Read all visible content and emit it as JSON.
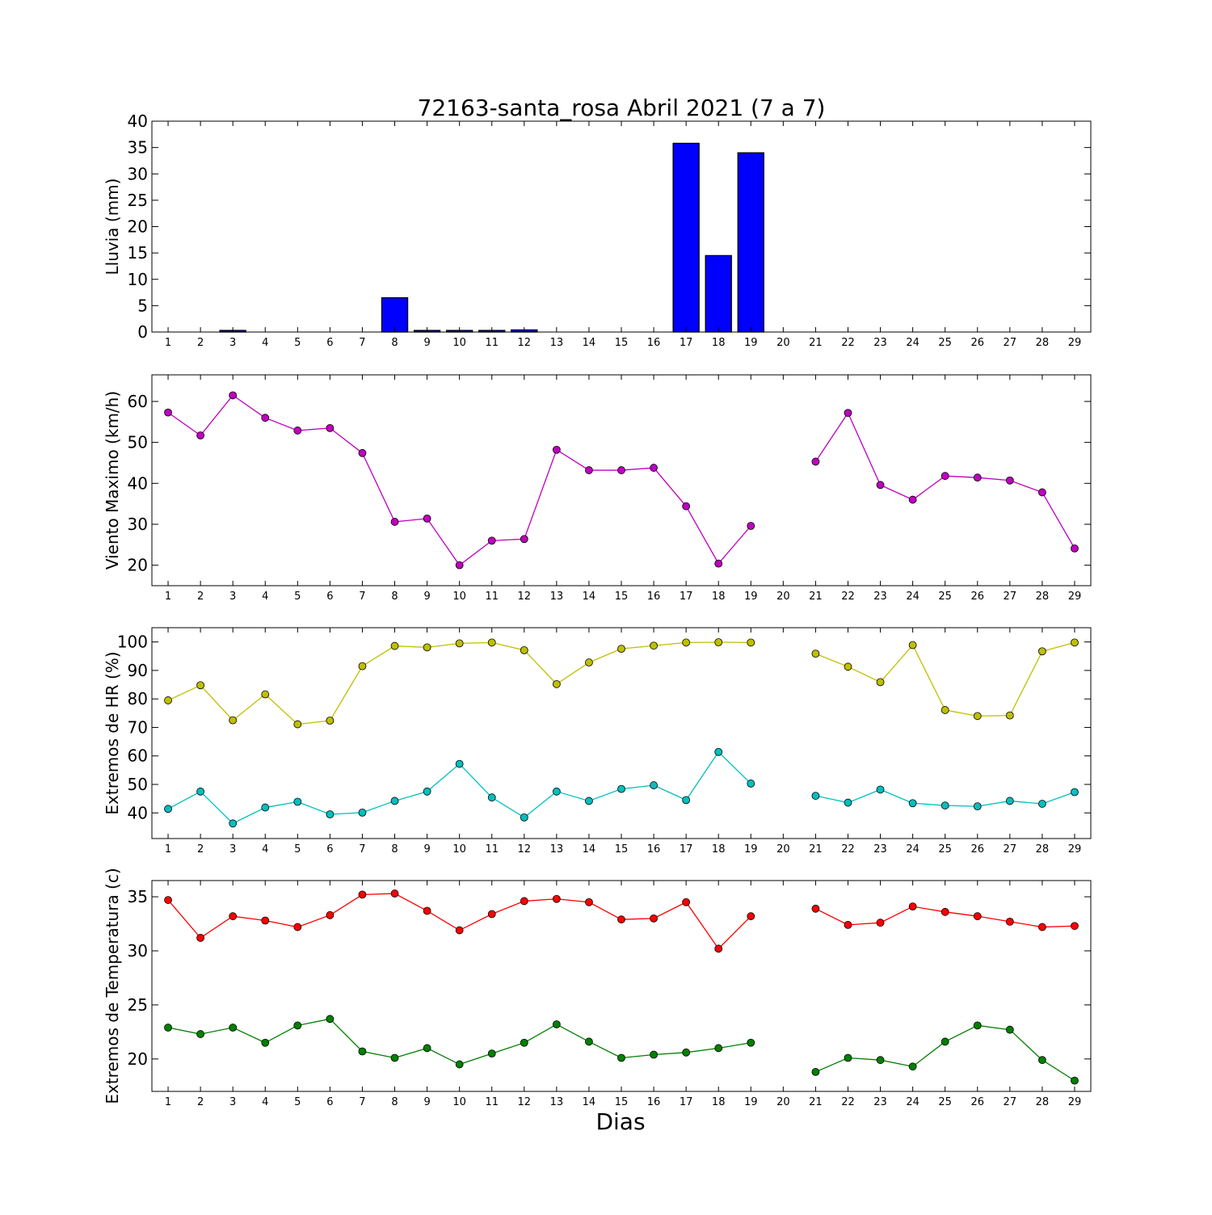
{
  "figure": {
    "title": "72163-santa_rosa Abril 2021  (7 a 7)",
    "xlabel": "Dias"
  },
  "chart_data": [
    {
      "type": "bar",
      "ylabel": "Lluvia (mm)",
      "ylim": [
        0,
        40
      ],
      "yticks": [
        0,
        5,
        10,
        15,
        20,
        25,
        30,
        35,
        40
      ],
      "categories": [
        1,
        2,
        3,
        4,
        5,
        6,
        7,
        8,
        9,
        10,
        11,
        12,
        13,
        14,
        15,
        16,
        17,
        18,
        19,
        20,
        21,
        22,
        23,
        24,
        25,
        26,
        27,
        28,
        29
      ],
      "values": [
        0,
        0,
        0.3,
        0,
        0,
        0,
        0,
        6.5,
        0.3,
        0.3,
        0.3,
        0.4,
        0,
        0,
        0,
        0,
        35.8,
        14.5,
        34,
        0,
        0,
        0,
        0,
        0,
        0,
        0,
        0,
        0,
        0
      ],
      "colors": {
        "fill": "#0000ff",
        "stroke": "#000000"
      }
    },
    {
      "type": "line",
      "ylabel": "Viento Maximo (km/h)",
      "ylim": [
        15,
        66.5
      ],
      "yticks": [
        20,
        30,
        40,
        50,
        60
      ],
      "x": [
        1,
        2,
        3,
        4,
        5,
        6,
        7,
        8,
        9,
        10,
        11,
        12,
        13,
        14,
        15,
        16,
        17,
        18,
        19,
        20,
        21,
        22,
        23,
        24,
        25,
        26,
        27,
        28,
        29
      ],
      "series": [
        {
          "color": "#bf00bf",
          "values": [
            57.3,
            51.7,
            61.5,
            56,
            52.9,
            53.5,
            47.4,
            30.6,
            31.4,
            20,
            26,
            26.4,
            48.2,
            43.2,
            43.2,
            43.8,
            34.4,
            20.4,
            29.6,
            null,
            45.3,
            57.2,
            39.6,
            36,
            41.8,
            41.4,
            40.7,
            37.8,
            24.1
          ]
        }
      ]
    },
    {
      "type": "line",
      "ylabel": "Extremos de HR (%)",
      "ylim": [
        31,
        105
      ],
      "yticks": [
        40,
        50,
        60,
        70,
        80,
        90,
        100
      ],
      "x": [
        1,
        2,
        3,
        4,
        5,
        6,
        7,
        8,
        9,
        10,
        11,
        12,
        13,
        14,
        15,
        16,
        17,
        18,
        19,
        20,
        21,
        22,
        23,
        24,
        25,
        26,
        27,
        28,
        29
      ],
      "series": [
        {
          "color": "#bfbf00",
          "values": [
            79.5,
            84.8,
            72.5,
            81.6,
            71.1,
            72.4,
            91.5,
            98.6,
            98.1,
            99.5,
            99.8,
            97.1,
            85.2,
            92.8,
            97.6,
            98.7,
            99.8,
            99.9,
            99.8,
            null,
            95.9,
            91.3,
            85.9,
            98.9,
            76.1,
            74,
            74.2,
            96.7,
            99.8
          ]
        },
        {
          "color": "#00bfbf",
          "values": [
            41.4,
            47.5,
            36.3,
            41.9,
            43.9,
            39.5,
            40.1,
            44.2,
            47.5,
            57.2,
            45.4,
            38.4,
            47.5,
            44.2,
            48.4,
            49.7,
            44.5,
            61.4,
            50.3,
            null,
            46,
            43.6,
            48.2,
            43.4,
            42.6,
            42.3,
            44.2,
            43.2,
            47.3
          ]
        }
      ]
    },
    {
      "type": "line",
      "ylabel": "Extremos de Temperatura (c)",
      "ylim": [
        17,
        36.5
      ],
      "yticks": [
        20,
        25,
        30,
        35
      ],
      "x": [
        1,
        2,
        3,
        4,
        5,
        6,
        7,
        8,
        9,
        10,
        11,
        12,
        13,
        14,
        15,
        16,
        17,
        18,
        19,
        20,
        21,
        22,
        23,
        24,
        25,
        26,
        27,
        28,
        29
      ],
      "series": [
        {
          "color": "#ff0000",
          "values": [
            34.7,
            31.2,
            33.2,
            32.8,
            32.2,
            33.3,
            35.2,
            35.3,
            33.7,
            31.9,
            33.4,
            34.6,
            34.8,
            34.5,
            32.9,
            33,
            34.5,
            30.2,
            33.2,
            null,
            33.9,
            32.4,
            32.6,
            34.1,
            33.6,
            33.2,
            32.7,
            32.2,
            32.3
          ]
        },
        {
          "color": "#008000",
          "values": [
            22.9,
            22.3,
            22.9,
            21.5,
            23.1,
            23.7,
            20.7,
            20.1,
            21,
            19.5,
            20.5,
            21.5,
            23.2,
            21.6,
            20.1,
            20.4,
            20.6,
            21,
            21.5,
            null,
            18.8,
            20.1,
            19.9,
            19.3,
            21.6,
            23.1,
            22.7,
            19.9,
            18
          ]
        }
      ]
    }
  ]
}
